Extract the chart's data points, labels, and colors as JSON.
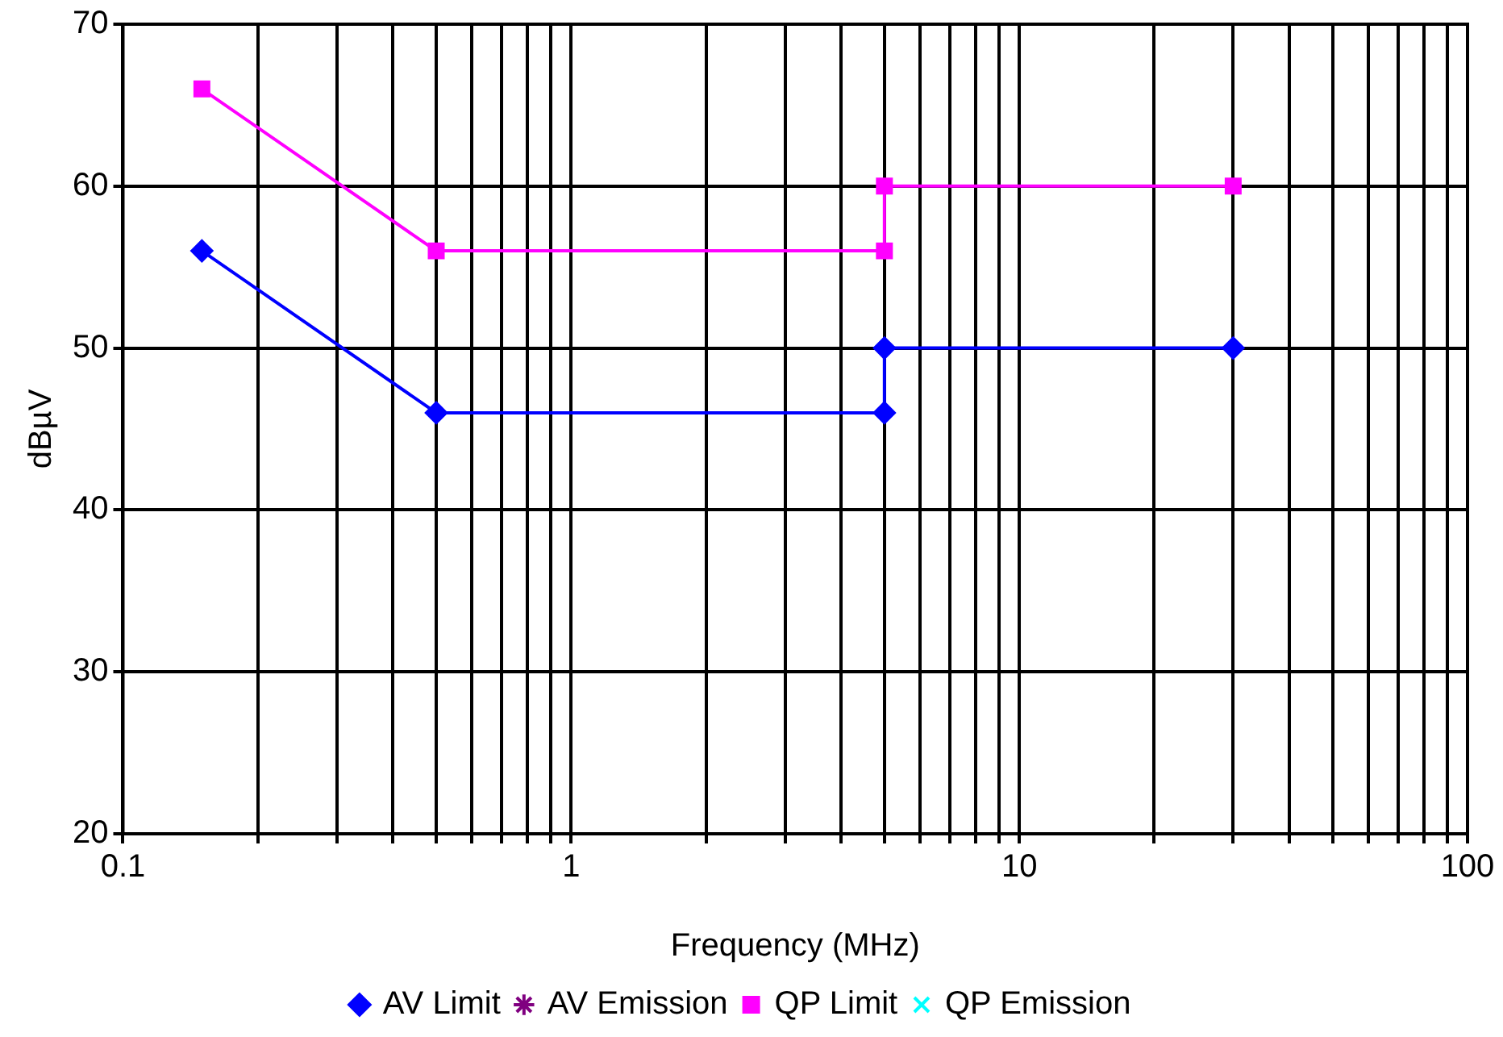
{
  "chart_data": {
    "type": "line",
    "xlabel": "Frequency (MHz)",
    "ylabel": "dBµV",
    "log": "x",
    "xlim": [
      0.1,
      100
    ],
    "ylim": [
      20,
      70
    ],
    "xticks": [
      0.1,
      {
        "value": 0.2,
        "label": null
      },
      {
        "value": 0.3,
        "label": null
      },
      {
        "value": 0.4,
        "label": null
      },
      {
        "value": 0.5,
        "label": null
      },
      {
        "value": 0.6,
        "label": null
      },
      {
        "value": 0.7,
        "label": null
      },
      {
        "value": 0.8,
        "label": null
      },
      {
        "value": 0.9,
        "label": null
      },
      1,
      {
        "value": 2,
        "label": null
      },
      {
        "value": 3,
        "label": null
      },
      {
        "value": 4,
        "label": null
      },
      {
        "value": 5,
        "label": null
      },
      {
        "value": 6,
        "label": null
      },
      {
        "value": 7,
        "label": null
      },
      {
        "value": 8,
        "label": null
      },
      {
        "value": 9,
        "label": null
      },
      10,
      {
        "value": 20,
        "label": null
      },
      {
        "value": 30,
        "label": null
      },
      {
        "value": 40,
        "label": null
      },
      {
        "value": 50,
        "label": null
      },
      {
        "value": 60,
        "label": null
      },
      {
        "value": 70,
        "label": null
      },
      {
        "value": 80,
        "label": null
      },
      {
        "value": 90,
        "label": null
      },
      100
    ],
    "yticks": [
      20,
      30,
      40,
      50,
      60,
      70
    ],
    "grid": true,
    "legend": "bottom",
    "series": [
      {
        "name": "AV Limit",
        "color": "#0000ff",
        "marker": "diamond",
        "x": [
          0.15,
          0.5,
          5,
          5,
          30
        ],
        "values": [
          56,
          46,
          46,
          50,
          50
        ]
      },
      {
        "name": "AV Emission",
        "color": "#800080",
        "marker": "star"
      },
      {
        "name": "QP Limit",
        "color": "#ff00ff",
        "marker": "square",
        "x": [
          0.15,
          0.5,
          5,
          5,
          30
        ],
        "values": [
          66,
          56,
          56,
          60,
          60
        ]
      },
      {
        "name": "QP Emission",
        "color": "#00ffff",
        "marker": "cross"
      }
    ]
  }
}
